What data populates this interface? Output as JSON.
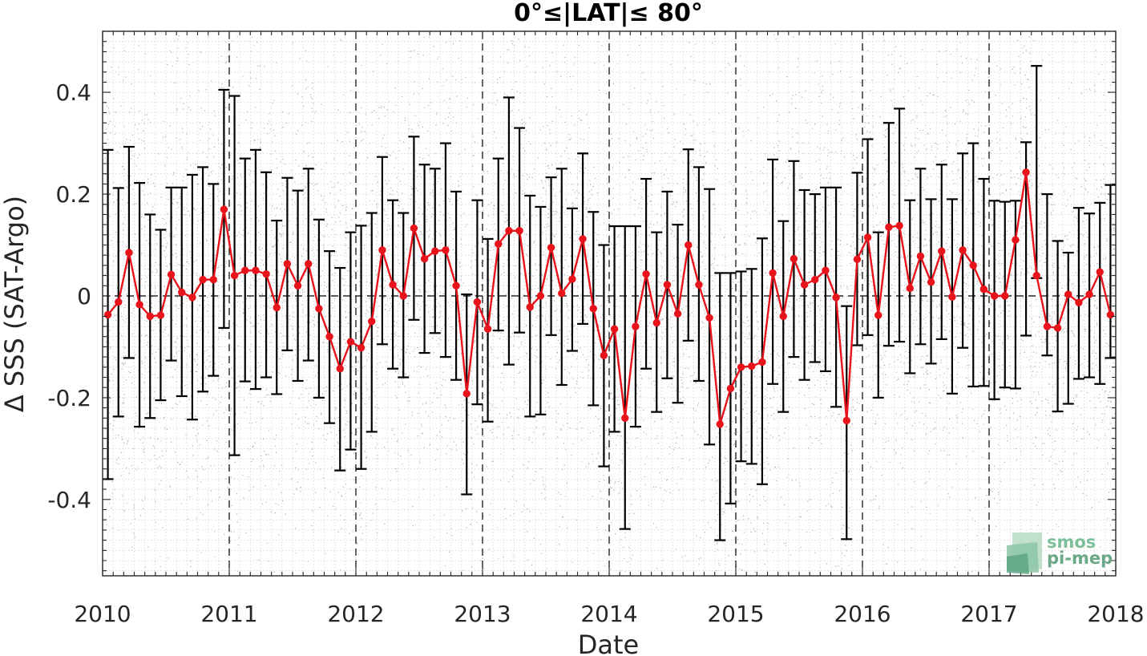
{
  "chart_data": {
    "type": "line",
    "title": "0°≤|LAT|≤ 80°",
    "xlabel": "Date",
    "ylabel": "Δ SSS (SAT-Argo)",
    "xlim": [
      2010,
      2018
    ],
    "ylim": [
      -0.55,
      0.52
    ],
    "x_ticks": [
      "2010",
      "2011",
      "2012",
      "2013",
      "2014",
      "2015",
      "2016",
      "2017",
      "2018"
    ],
    "y_ticks": [
      -0.4,
      -0.2,
      0,
      0.2,
      0.4
    ],
    "y_tick_labels": [
      "-0.4",
      "-0.2",
      "0",
      "0.2",
      "0.4"
    ],
    "grid": "minor dotted grid; dashed vertical lines at each year; dashed zero line",
    "series": [
      {
        "style": "red line with circle markers, black error bars",
        "color": "#e8131b",
        "x": [
          "2010-01",
          "2010-02",
          "2010-03",
          "2010-04",
          "2010-05",
          "2010-06",
          "2010-07",
          "2010-08",
          "2010-09",
          "2010-10",
          "2010-11",
          "2010-12",
          "2011-01",
          "2011-02",
          "2011-03",
          "2011-04",
          "2011-05",
          "2011-06",
          "2011-07",
          "2011-08",
          "2011-09",
          "2011-10",
          "2011-11",
          "2011-12",
          "2012-01",
          "2012-02",
          "2012-03",
          "2012-04",
          "2012-05",
          "2012-06",
          "2012-07",
          "2012-08",
          "2012-09",
          "2012-10",
          "2012-11",
          "2012-12",
          "2013-01",
          "2013-02",
          "2013-03",
          "2013-04",
          "2013-05",
          "2013-06",
          "2013-07",
          "2013-08",
          "2013-09",
          "2013-10",
          "2013-11",
          "2013-12",
          "2014-01",
          "2014-02",
          "2014-03",
          "2014-04",
          "2014-05",
          "2014-06",
          "2014-07",
          "2014-08",
          "2014-09",
          "2014-10",
          "2014-11",
          "2014-12",
          "2015-01",
          "2015-02",
          "2015-03",
          "2015-04",
          "2015-05",
          "2015-06",
          "2015-07",
          "2015-08",
          "2015-09",
          "2015-10",
          "2015-11",
          "2015-12",
          "2016-01",
          "2016-02",
          "2016-03",
          "2016-04",
          "2016-05",
          "2016-06",
          "2016-07",
          "2016-08",
          "2016-09",
          "2016-10",
          "2016-11",
          "2016-12",
          "2017-01",
          "2017-02",
          "2017-03",
          "2017-04",
          "2017-05",
          "2017-06",
          "2017-07",
          "2017-08",
          "2017-09",
          "2017-10",
          "2017-11",
          "2017-12"
        ],
        "values": [
          -0.037,
          -0.012,
          0.085,
          -0.017,
          -0.04,
          -0.038,
          0.042,
          0.007,
          -0.003,
          0.032,
          0.032,
          0.17,
          0.04,
          0.05,
          0.05,
          0.043,
          -0.023,
          0.063,
          0.02,
          0.063,
          -0.025,
          -0.08,
          -0.143,
          -0.09,
          -0.102,
          -0.05,
          0.09,
          0.022,
          0.0,
          0.133,
          0.073,
          0.088,
          0.09,
          0.02,
          -0.192,
          -0.012,
          -0.065,
          0.102,
          0.128,
          0.128,
          -0.022,
          0.0,
          0.095,
          0.005,
          0.033,
          0.112,
          -0.025,
          -0.117,
          -0.065,
          -0.24,
          -0.06,
          0.043,
          -0.053,
          0.022,
          -0.035,
          0.1,
          0.022,
          -0.043,
          -0.252,
          -0.182,
          -0.14,
          -0.138,
          -0.13,
          0.045,
          -0.04,
          0.073,
          0.022,
          0.032,
          0.05,
          -0.003,
          -0.245,
          0.072,
          0.115,
          -0.038,
          0.135,
          0.138,
          0.015,
          0.078,
          0.027,
          0.088,
          -0.002,
          0.09,
          0.06,
          0.013,
          0.0,
          0.0,
          0.11,
          0.243,
          0.04,
          -0.06,
          -0.063,
          0.003,
          -0.013,
          0.003,
          0.047,
          -0.037
        ],
        "error_low": [
          -0.36,
          -0.237,
          -0.122,
          -0.257,
          -0.24,
          -0.205,
          -0.127,
          -0.197,
          -0.243,
          -0.188,
          -0.157,
          -0.063,
          -0.313,
          -0.168,
          -0.183,
          -0.16,
          -0.193,
          -0.107,
          -0.167,
          -0.127,
          -0.2,
          -0.25,
          -0.343,
          -0.302,
          -0.34,
          -0.267,
          -0.095,
          -0.143,
          -0.16,
          -0.047,
          -0.112,
          -0.073,
          -0.12,
          -0.165,
          -0.39,
          -0.213,
          -0.247,
          -0.068,
          -0.135,
          -0.072,
          -0.237,
          -0.233,
          -0.077,
          -0.175,
          -0.108,
          -0.055,
          -0.215,
          -0.335,
          -0.267,
          -0.458,
          -0.257,
          -0.143,
          -0.228,
          -0.162,
          -0.21,
          -0.088,
          -0.167,
          -0.292,
          -0.48,
          -0.408,
          -0.325,
          -0.33,
          -0.37,
          -0.173,
          -0.228,
          -0.12,
          -0.165,
          -0.13,
          -0.148,
          -0.218,
          -0.478,
          -0.097,
          -0.077,
          -0.2,
          -0.098,
          -0.09,
          -0.152,
          -0.095,
          -0.133,
          -0.085,
          -0.192,
          -0.102,
          -0.178,
          -0.177,
          -0.203,
          -0.18,
          -0.182,
          -0.078,
          0.035,
          -0.117,
          -0.227,
          -0.212,
          -0.163,
          -0.16,
          -0.173,
          -0.122
        ],
        "error_high": [
          0.287,
          0.212,
          0.293,
          0.222,
          0.16,
          0.13,
          0.213,
          0.213,
          0.238,
          0.253,
          0.22,
          0.405,
          0.393,
          0.27,
          0.287,
          0.243,
          0.148,
          0.232,
          0.207,
          0.25,
          0.15,
          0.088,
          0.055,
          0.125,
          0.138,
          0.163,
          0.273,
          0.188,
          0.163,
          0.313,
          0.258,
          0.25,
          0.3,
          0.205,
          0.003,
          0.188,
          0.112,
          0.27,
          0.39,
          0.33,
          0.197,
          0.175,
          0.233,
          0.25,
          0.172,
          0.28,
          0.165,
          0.1,
          0.137,
          0.137,
          0.137,
          0.23,
          0.125,
          0.205,
          0.14,
          0.288,
          0.253,
          0.21,
          0.045,
          0.045,
          0.048,
          0.053,
          0.113,
          0.268,
          0.147,
          0.265,
          0.208,
          0.2,
          0.213,
          0.213,
          -0.02,
          0.242,
          0.308,
          0.125,
          0.34,
          0.368,
          0.188,
          0.25,
          0.19,
          0.258,
          0.19,
          0.28,
          0.3,
          0.23,
          0.187,
          0.185,
          0.187,
          0.302,
          0.452,
          0.2,
          0.108,
          0.085,
          0.173,
          0.162,
          0.183,
          0.218
        ]
      }
    ]
  },
  "logo": {
    "line1": "smos",
    "line2": "pi-mep",
    "colors": [
      "#5aa383",
      "#8cc6a6",
      "#b7dcc3"
    ]
  },
  "colors": {
    "mean_line": "#e8131b",
    "error_bar": "#000000",
    "scatter": "#6b6b6b",
    "grid": "#d4d4d4"
  }
}
